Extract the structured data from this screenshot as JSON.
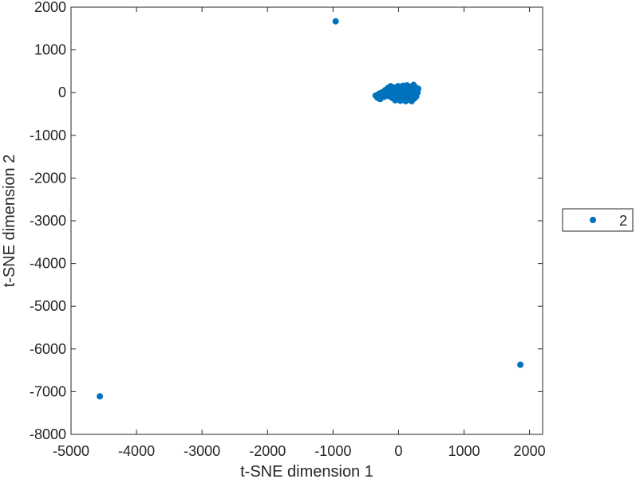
{
  "chart_data": {
    "type": "scatter",
    "xlabel": "t-SNE dimension 1",
    "ylabel": "t-SNE dimension 2",
    "xlim": [
      -5000,
      2200
    ],
    "ylim": [
      -8000,
      2000
    ],
    "x_ticks": [
      -5000,
      -4000,
      -3000,
      -2000,
      -1000,
      0,
      1000,
      2000
    ],
    "y_ticks": [
      2000,
      1000,
      0,
      -1000,
      -2000,
      -3000,
      -4000,
      -5000,
      -6000,
      -7000,
      -8000
    ],
    "grid": false,
    "legend_position": "outside-right",
    "series": [
      {
        "name": "2",
        "color": "#0072bd",
        "marker": "filled-circle",
        "points": [
          [
            -960,
            1670
          ],
          [
            -4560,
            -7110
          ],
          [
            1860,
            -6370
          ],
          [
            -350,
            -70
          ],
          [
            -320,
            -120
          ],
          [
            -300,
            -30
          ],
          [
            -280,
            -150
          ],
          [
            -260,
            -60
          ],
          [
            -240,
            10
          ],
          [
            -220,
            -100
          ],
          [
            -200,
            60
          ],
          [
            -180,
            20
          ],
          [
            -160,
            110
          ],
          [
            -140,
            80
          ],
          [
            -120,
            150
          ],
          [
            -110,
            60
          ],
          [
            -100,
            -120
          ],
          [
            -90,
            20
          ],
          [
            -80,
            120
          ],
          [
            -70,
            -60
          ],
          [
            -60,
            90
          ],
          [
            -50,
            -180
          ],
          [
            -40,
            -20
          ],
          [
            -30,
            70
          ],
          [
            -20,
            -110
          ],
          [
            -10,
            150
          ],
          [
            0,
            40
          ],
          [
            10,
            -80
          ],
          [
            20,
            130
          ],
          [
            30,
            10
          ],
          [
            40,
            -150
          ],
          [
            50,
            80
          ],
          [
            60,
            -40
          ],
          [
            70,
            160
          ],
          [
            80,
            -10
          ],
          [
            90,
            -110
          ],
          [
            100,
            100
          ],
          [
            110,
            30
          ],
          [
            120,
            -70
          ],
          [
            130,
            170
          ],
          [
            140,
            -160
          ],
          [
            150,
            60
          ],
          [
            160,
            -20
          ],
          [
            170,
            140
          ],
          [
            180,
            -120
          ],
          [
            190,
            20
          ],
          [
            200,
            -200
          ],
          [
            210,
            90
          ],
          [
            220,
            -60
          ],
          [
            230,
            180
          ],
          [
            240,
            -140
          ],
          [
            250,
            40
          ],
          [
            260,
            120
          ],
          [
            270,
            -90
          ],
          [
            280,
            60
          ],
          [
            290,
            0
          ],
          [
            300,
            90
          ],
          [
            -150,
            -80
          ],
          [
            -60,
            -140
          ],
          [
            30,
            -190
          ],
          [
            110,
            -200
          ],
          [
            170,
            100
          ],
          [
            240,
            150
          ],
          [
            -200,
            -20
          ],
          [
            -270,
            -10
          ],
          [
            5,
            80
          ],
          [
            75,
            60
          ],
          [
            205,
            -170
          ],
          [
            265,
            -30
          ]
        ]
      }
    ]
  }
}
